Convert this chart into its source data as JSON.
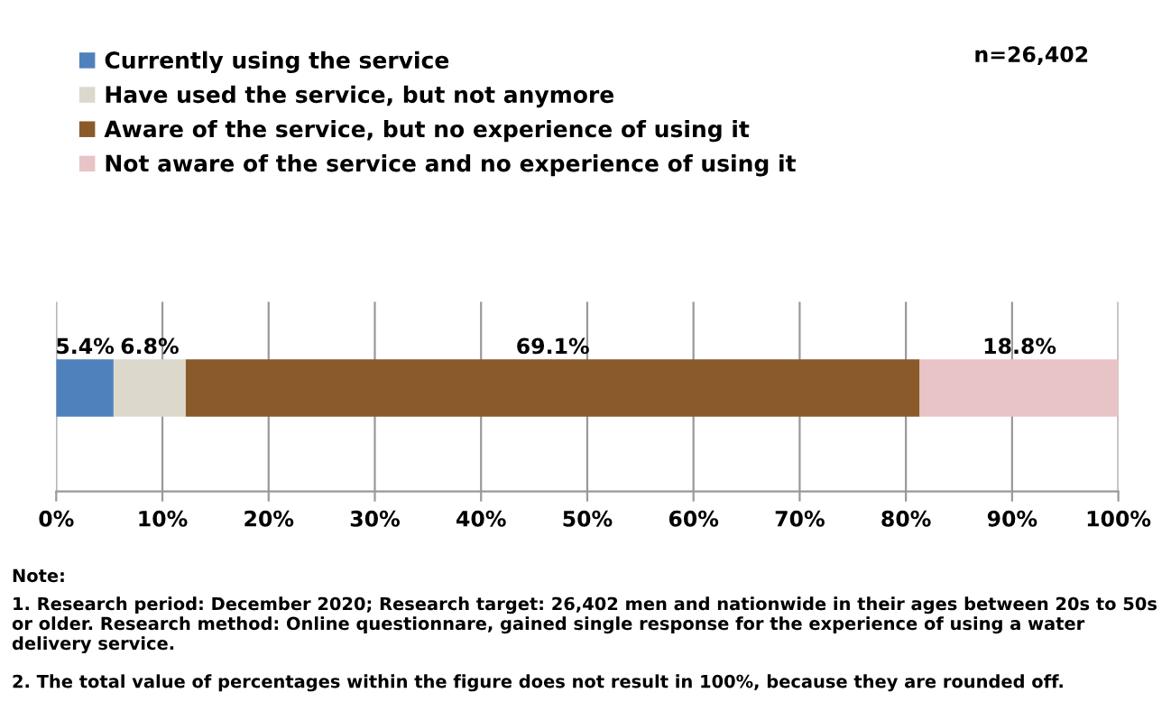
{
  "chart_data": {
    "type": "bar",
    "orientation": "horizontal",
    "stacked": true,
    "categories": [
      null
    ],
    "series": [
      {
        "name": "Currently using the service",
        "color": "#4f81bd",
        "values": [
          5.4
        ],
        "value_labels": [
          "5.4%"
        ]
      },
      {
        "name": "Have used the service, but not anymore",
        "color": "#ddd8cc",
        "values": [
          6.8
        ],
        "value_labels": [
          "6.8%"
        ]
      },
      {
        "name": "Aware of the service, but no experience of using it",
        "color": "#8b5a2b",
        "values": [
          69.1
        ],
        "value_labels": [
          "69.1%"
        ]
      },
      {
        "name": "Not aware of the service and no experience of using it",
        "color": "#e8c4c6",
        "values": [
          18.8
        ],
        "value_labels": [
          "18.8%"
        ]
      }
    ],
    "xlim": [
      0,
      100
    ],
    "xticks": [
      {
        "value": 0,
        "label": "0%"
      },
      {
        "value": 10,
        "label": "10%"
      },
      {
        "value": 20,
        "label": "20%"
      },
      {
        "value": 30,
        "label": "30%"
      },
      {
        "value": 40,
        "label": "40%"
      },
      {
        "value": 50,
        "label": "50%"
      },
      {
        "value": 60,
        "label": "60%"
      },
      {
        "value": 70,
        "label": "70%"
      },
      {
        "value": 80,
        "label": "80%"
      },
      {
        "value": 90,
        "label": "90%"
      },
      {
        "value": 100,
        "label": "100%"
      }
    ],
    "grid": "x",
    "legend": "top left",
    "annotations": [
      "n=26,402",
      "Note:",
      "1. Research period: December 2020; Research target: 26,402 men and nationwide in their ages between 20s to 50s or older. Research method: Online questionnare, gained single response for the experience of using a water delivery service.",
      "2. The total value of percentages within the figure does not result in 100%, because they are rounded off."
    ]
  }
}
